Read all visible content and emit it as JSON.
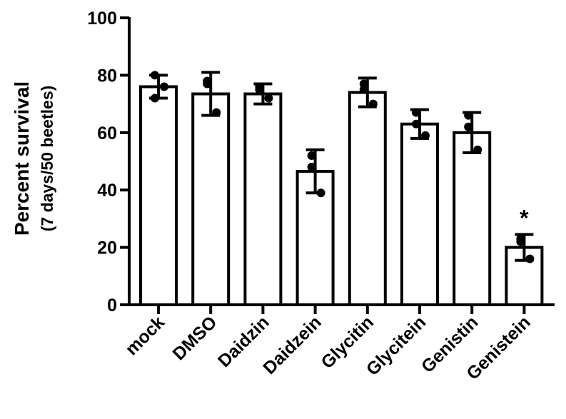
{
  "chart_data": {
    "type": "bar",
    "title": "",
    "xlabel": "",
    "ylabel": "Percent survival",
    "ylabel_sub": "(7 days/50 beetles)",
    "ylim": [
      0,
      100
    ],
    "yticks": [
      0,
      20,
      40,
      60,
      80,
      100
    ],
    "grid": false,
    "categories": [
      "mock",
      "DMSO",
      "Daidzin",
      "Daidzein",
      "Glycitin",
      "Glycitein",
      "Genistin",
      "Genistein"
    ],
    "values": [
      76,
      73.5,
      73.5,
      46.5,
      74,
      63,
      60,
      20
    ],
    "error": [
      4,
      7.5,
      3.5,
      7.5,
      5,
      5,
      7,
      4.5
    ],
    "points": [
      [
        80,
        76,
        72
      ],
      [
        78,
        67,
        77
      ],
      [
        76,
        72,
        75
      ],
      [
        52,
        39,
        48
      ],
      [
        77,
        70,
        75
      ],
      [
        67,
        59,
        63
      ],
      [
        66,
        54,
        62
      ],
      [
        23,
        16,
        22
      ]
    ],
    "annotations": [
      {
        "category": "Genistein",
        "text": "*"
      }
    ],
    "colors": {
      "bar_fill": "#ffffff",
      "stroke": "#000000",
      "point": "#000000"
    }
  }
}
